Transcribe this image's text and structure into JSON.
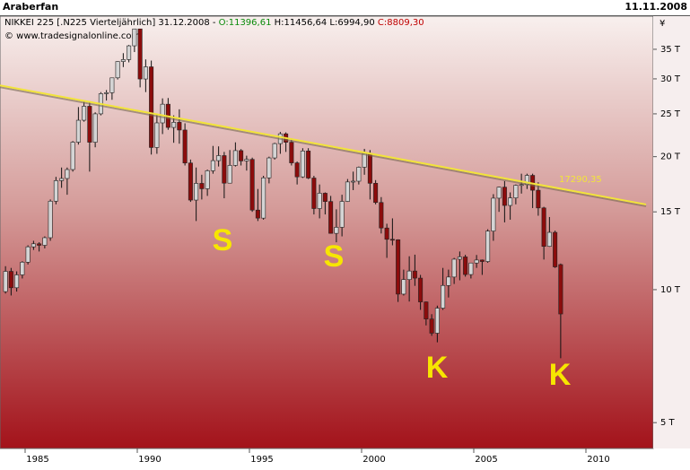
{
  "header": {
    "user": "Araberfan",
    "date": "11.11.2008"
  },
  "chart_data": {
    "type": "candlestick",
    "title": "NIKKEI 225 [.N225  Vierteljährlich] 31.12.2008 -",
    "ohlc_labels": [
      "O:11396,61",
      "H:11456,64 L:6994,90",
      "C:8809,30"
    ],
    "source": "© www.tradesignalonline.com",
    "x": [
      1984.125,
      1984.375,
      1984.625,
      1984.875,
      1985.125,
      1985.375,
      1985.625,
      1985.875,
      1986.125,
      1986.375,
      1986.625,
      1986.875,
      1987.125,
      1987.375,
      1987.625,
      1987.875,
      1988.125,
      1988.375,
      1988.625,
      1988.875,
      1989.125,
      1989.375,
      1989.625,
      1989.875,
      1990.125,
      1990.375,
      1990.625,
      1990.875,
      1991.125,
      1991.375,
      1991.625,
      1991.875,
      1992.125,
      1992.375,
      1992.625,
      1992.875,
      1993.125,
      1993.375,
      1993.625,
      1993.875,
      1994.125,
      1994.375,
      1994.625,
      1994.875,
      1995.125,
      1995.375,
      1995.625,
      1995.875,
      1996.125,
      1996.375,
      1996.625,
      1996.875,
      1997.125,
      1997.375,
      1997.625,
      1997.875,
      1998.125,
      1998.375,
      1998.625,
      1998.875,
      1999.125,
      1999.375,
      1999.625,
      1999.875,
      2000.125,
      2000.375,
      2000.625,
      2000.875,
      2001.125,
      2001.375,
      2001.625,
      2001.875,
      2002.125,
      2002.375,
      2002.625,
      2002.875,
      2003.125,
      2003.375,
      2003.625,
      2003.875,
      2004.125,
      2004.375,
      2004.625,
      2004.875,
      2005.125,
      2005.375,
      2005.625,
      2005.875,
      2006.125,
      2006.375,
      2006.625,
      2006.875,
      2007.125,
      2007.375,
      2007.625,
      2007.875,
      2008.125,
      2008.375,
      2008.625,
      2008.875
    ],
    "open": [
      9900,
      11000,
      10100,
      10800,
      11540,
      12500,
      12700,
      12600,
      13110,
      15860,
      17650,
      17850,
      18700,
      21570,
      24180,
      26010,
      21560,
      25000,
      27770,
      27920,
      30160,
      32840,
      33180,
      35640,
      38920,
      29980,
      31940,
      20980,
      23850,
      26290,
      23290,
      23920,
      22980,
      19350,
      15950,
      17400,
      16920,
      18590,
      19590,
      20110,
      17420,
      19110,
      20640,
      19560,
      19720,
      15140,
      14520,
      17910,
      19870,
      21410,
      22530,
      21560,
      19360,
      18000,
      20600,
      17890,
      15260,
      16530,
      15830,
      13410,
      13840,
      15840,
      17530,
      17600,
      18930,
      20340,
      17410,
      15750,
      13790,
      13000,
      12970,
      9770,
      10540,
      11020,
      10620,
      9380,
      8580,
      7970,
      9080,
      10220,
      10680,
      11720,
      11860,
      10820,
      11490,
      11670,
      11580,
      13570,
      16110,
      17060,
      15510,
      16130,
      17230,
      17290,
      18140,
      16790,
      15310,
      12530,
      13480,
      11396.61
    ],
    "high": [
      11300,
      11200,
      11000,
      11600,
      12600,
      12900,
      12800,
      13200,
      16000,
      18000,
      18900,
      18900,
      21700,
      25900,
      26600,
      26600,
      25200,
      28000,
      28300,
      30200,
      32900,
      34300,
      35800,
      38960,
      38950,
      33200,
      33000,
      25000,
      27100,
      27150,
      24800,
      25600,
      23800,
      19700,
      18900,
      18200,
      18700,
      21150,
      21100,
      20500,
      20700,
      21550,
      20800,
      20100,
      19900,
      16900,
      18100,
      20000,
      21500,
      22750,
      22700,
      22000,
      19500,
      20900,
      20900,
      18100,
      17300,
      16600,
      16300,
      15200,
      16400,
      17800,
      18500,
      19000,
      20830,
      20700,
      17700,
      16200,
      14100,
      14500,
      13000,
      11100,
      11900,
      12000,
      10800,
      9400,
      8800,
      9200,
      11200,
      11100,
      11800,
      12200,
      11990,
      11500,
      11980,
      11700,
      13700,
      16450,
      17100,
      17600,
      16600,
      17300,
      18300,
      18300,
      18300,
      17500,
      15400,
      14600,
      13600,
      11456.64
    ],
    "low": [
      9800,
      9700,
      9900,
      10600,
      11400,
      12300,
      12200,
      12400,
      12900,
      15600,
      17000,
      16400,
      18500,
      21300,
      24000,
      18500,
      21000,
      24800,
      26800,
      26900,
      29900,
      31900,
      32700,
      34500,
      28700,
      28000,
      20220,
      20300,
      22500,
      23000,
      21500,
      21400,
      19100,
      15800,
      14300,
      16000,
      16300,
      18300,
      19000,
      16100,
      17400,
      19000,
      19100,
      18600,
      15000,
      14300,
      14400,
      17400,
      19700,
      20300,
      20500,
      19100,
      17300,
      17900,
      17800,
      14800,
      14500,
      14800,
      13400,
      12800,
      13200,
      15800,
      16800,
      17300,
      18200,
      16000,
      15600,
      13400,
      11800,
      12600,
      9380,
      9700,
      9400,
      10200,
      9000,
      8300,
      7860,
      7600,
      9000,
      9600,
      10300,
      10500,
      10700,
      10600,
      11200,
      10800,
      11500,
      12900,
      15000,
      14200,
      14400,
      15600,
      16500,
      16900,
      15300,
      14700,
      11700,
      12500,
      11200,
      6994.9
    ],
    "close": [
      11000,
      10100,
      10800,
      11540,
      12500,
      12700,
      12600,
      13110,
      15860,
      17650,
      17850,
      18700,
      21570,
      24180,
      26010,
      21560,
      25000,
      27770,
      27920,
      30160,
      32840,
      33180,
      35640,
      38920,
      29980,
      31940,
      20980,
      23850,
      26290,
      23290,
      23920,
      22980,
      19350,
      15950,
      17400,
      16920,
      18590,
      19590,
      20110,
      17420,
      19110,
      20640,
      19560,
      19720,
      15140,
      14520,
      17910,
      19870,
      21410,
      22530,
      21560,
      19360,
      18000,
      20600,
      17890,
      15260,
      16530,
      15830,
      13410,
      13840,
      15840,
      17530,
      17600,
      18930,
      20340,
      17410,
      15750,
      13790,
      13000,
      12970,
      9770,
      10540,
      11020,
      10620,
      9380,
      8580,
      7970,
      9080,
      10220,
      10680,
      11720,
      11860,
      10820,
      11490,
      11670,
      11580,
      13570,
      16110,
      17060,
      15510,
      16130,
      17230,
      17290,
      18140,
      16790,
      15310,
      12530,
      13480,
      11260,
      8809.3
    ],
    "up_color": "#d4d4d4",
    "down_color": "#8c0c0c",
    "log_scale": true,
    "ylim": [
      4370,
      41600
    ],
    "yticks": [
      {
        "value": 5000,
        "label": "5 T"
      },
      {
        "value": 10000,
        "label": "10 T"
      },
      {
        "value": 15000,
        "label": "15 T"
      },
      {
        "value": 20000,
        "label": "20 T"
      },
      {
        "value": 25000,
        "label": "25 T"
      },
      {
        "value": 30000,
        "label": "30 T"
      },
      {
        "value": 35000,
        "label": "35 T"
      }
    ],
    "y_unit": "¥",
    "xlim": [
      1983.88,
      2013
    ],
    "xticks": [
      1985,
      1990,
      1995,
      2000,
      2005,
      2010
    ],
    "trendline": {
      "x": [
        1983.88,
        2012.68
      ],
      "values": [
        29000,
        15590
      ],
      "color": "#f2e43a",
      "label": "17290,35",
      "label_value": 17290.35
    },
    "annotations": [
      "S",
      "S",
      "K",
      "K"
    ]
  }
}
